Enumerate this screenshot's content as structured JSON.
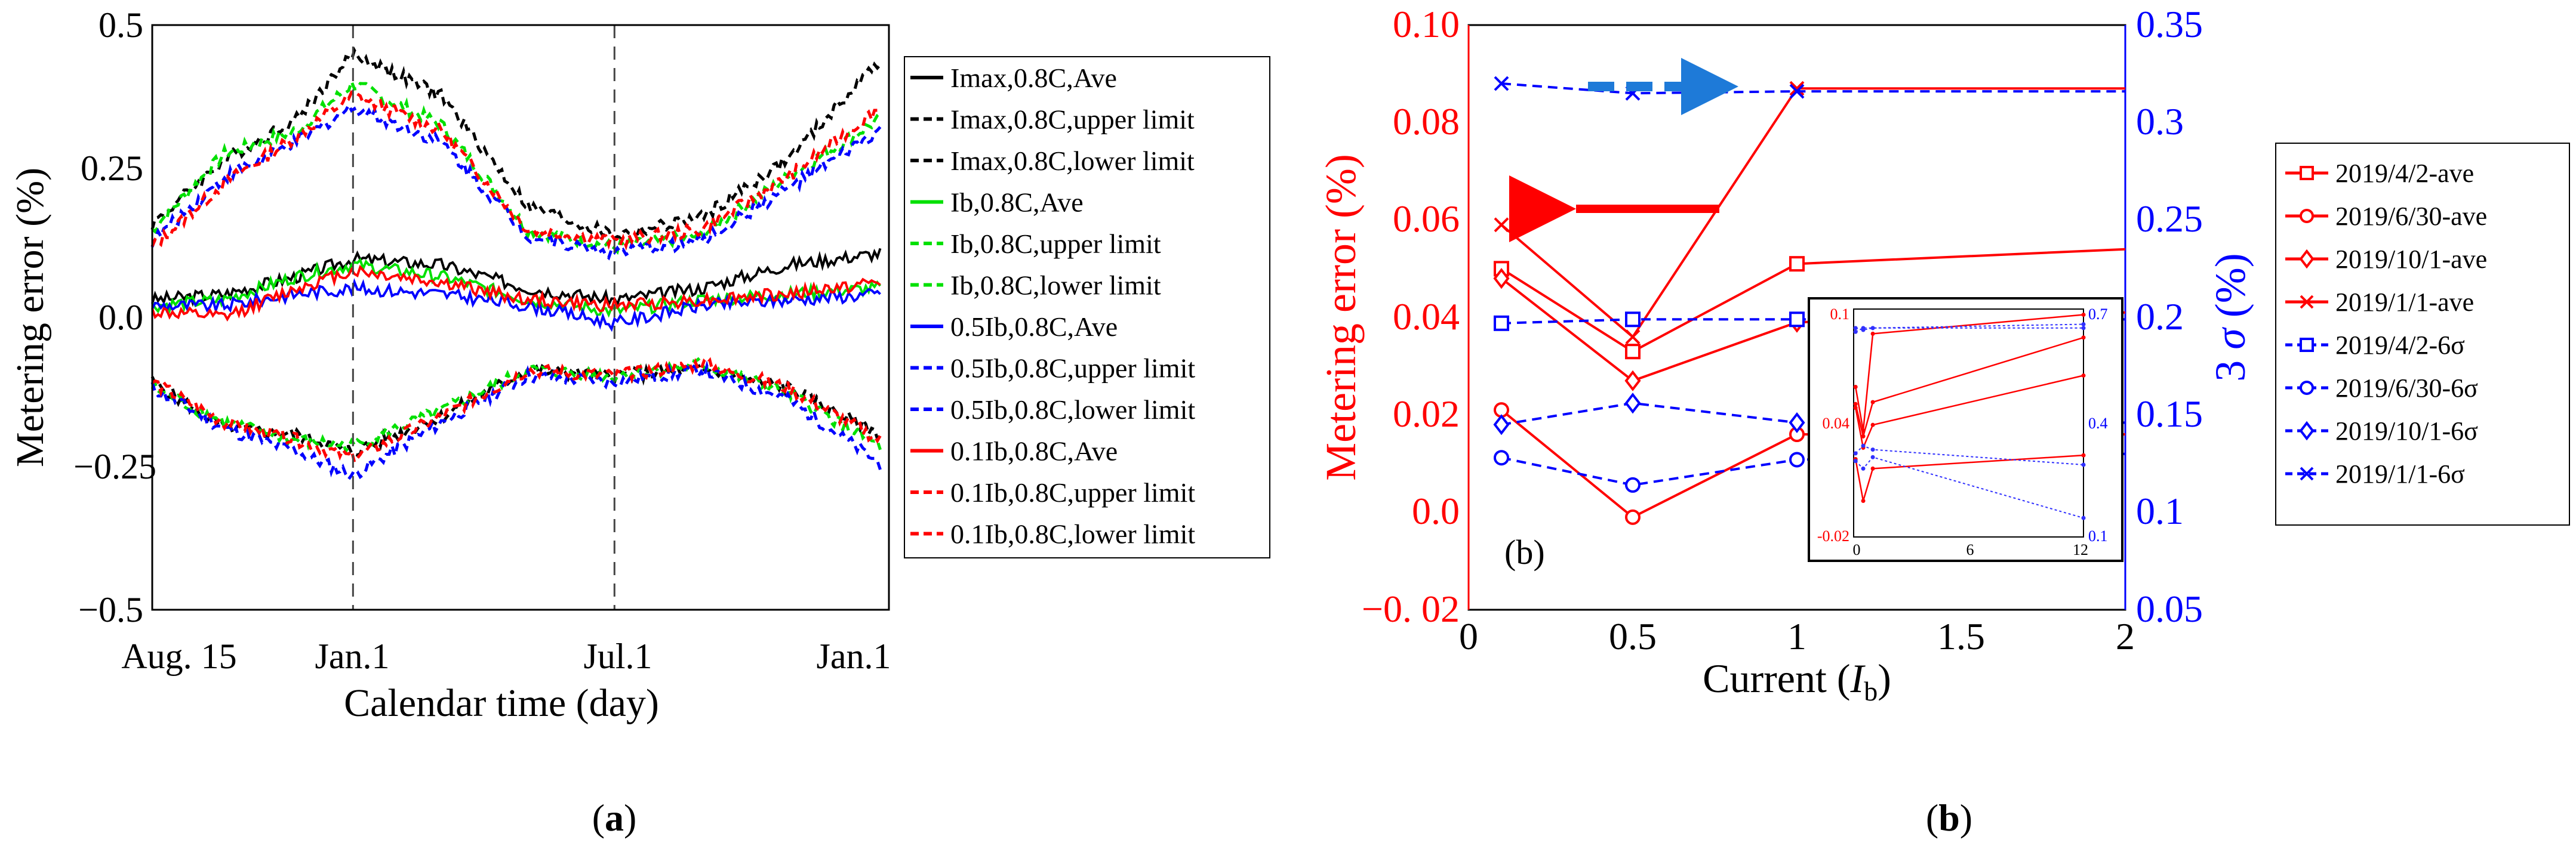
{
  "chart_data": [
    {
      "panel_label": "(a)",
      "panel_label_prefix": "(",
      "panel_label_letter": "a",
      "panel_label_suffix": ")",
      "type": "line",
      "xlabel": "Calendar time (day)",
      "ylabel": "Metering error (%)",
      "ylim": [
        -0.5,
        0.5
      ],
      "y_ticks": [
        "0.5",
        "0.25",
        "0.0",
        "−0.25",
        "−0.5"
      ],
      "y_tick_values": [
        0.5,
        0.25,
        0.0,
        -0.25,
        -0.5
      ],
      "x_ticks": [
        "Aug. 15",
        "Jan.1",
        "Jul.1",
        "Jan.1"
      ],
      "x_tick_values": [
        0,
        139,
        320,
        504
      ],
      "xlim": [
        0,
        510
      ],
      "vlines": [
        139,
        320
      ],
      "grid": false,
      "legend_position": "right, outside plot",
      "series": [
        {
          "name": "Imax,0.8C,Ave",
          "color": "#000000",
          "style": "solid",
          "x": [
            0,
            50,
            100,
            139,
            200,
            260,
            320,
            380,
            440,
            504
          ],
          "values": [
            0.03,
            0.04,
            0.07,
            0.1,
            0.09,
            0.05,
            0.03,
            0.05,
            0.09,
            0.11
          ]
        },
        {
          "name": "Imax,0.8C,upper limit",
          "color": "#000000",
          "style": "dashed",
          "x": [
            0,
            50,
            100,
            139,
            200,
            260,
            320,
            380,
            440,
            504
          ],
          "values": [
            0.16,
            0.27,
            0.34,
            0.45,
            0.38,
            0.19,
            0.14,
            0.17,
            0.27,
            0.44
          ]
        },
        {
          "name": "Imax,0.8C,lower limit",
          "color": "#000000",
          "style": "dashed",
          "x": [
            0,
            50,
            100,
            139,
            200,
            260,
            320,
            380,
            440,
            504
          ],
          "values": [
            -0.11,
            -0.19,
            -0.2,
            -0.23,
            -0.17,
            -0.09,
            -0.1,
            -0.09,
            -0.12,
            -0.2
          ]
        },
        {
          "name": "Ib,0.8C,Ave",
          "color": "#00e000",
          "style": "solid",
          "x": [
            0,
            50,
            100,
            139,
            200,
            260,
            320,
            380,
            440,
            504
          ],
          "values": [
            0.02,
            0.03,
            0.07,
            0.09,
            0.07,
            0.03,
            0.01,
            0.03,
            0.04,
            0.05
          ]
        },
        {
          "name": "Ib,0.8C,upper limit",
          "color": "#00e000",
          "style": "dashed",
          "x": [
            0,
            50,
            100,
            139,
            200,
            260,
            320,
            380,
            440,
            504
          ],
          "values": [
            0.15,
            0.28,
            0.32,
            0.4,
            0.33,
            0.15,
            0.12,
            0.14,
            0.24,
            0.34
          ]
        },
        {
          "name": "Ib,0.8C,lower limit",
          "color": "#00e000",
          "style": "dashed",
          "x": [
            0,
            50,
            100,
            139,
            200,
            260,
            320,
            380,
            440,
            504
          ],
          "values": [
            -0.12,
            -0.18,
            -0.21,
            -0.22,
            -0.16,
            -0.09,
            -0.1,
            -0.08,
            -0.13,
            -0.22
          ]
        },
        {
          "name": "0.5Ib,0.8C,Ave",
          "color": "#0000ff",
          "style": "solid",
          "x": [
            0,
            50,
            100,
            139,
            200,
            260,
            320,
            380,
            440,
            504
          ],
          "values": [
            0.02,
            0.02,
            0.04,
            0.05,
            0.04,
            0.02,
            -0.01,
            0.02,
            0.03,
            0.04
          ]
        },
        {
          "name": "0.5Ib,0.8C,upper limit",
          "color": "#0000ff",
          "style": "dashed",
          "x": [
            0,
            50,
            100,
            139,
            200,
            260,
            320,
            380,
            440,
            504
          ],
          "values": [
            0.13,
            0.24,
            0.3,
            0.36,
            0.3,
            0.14,
            0.11,
            0.13,
            0.22,
            0.32
          ]
        },
        {
          "name": "0.5Ib,0.8C,lower limit",
          "color": "#0000ff",
          "style": "dashed",
          "x": [
            0,
            50,
            100,
            139,
            200,
            260,
            320,
            380,
            440,
            504
          ],
          "values": [
            -0.12,
            -0.19,
            -0.23,
            -0.27,
            -0.18,
            -0.1,
            -0.11,
            -0.09,
            -0.14,
            -0.25
          ]
        },
        {
          "name": "0.1Ib,0.8C,Ave",
          "color": "#ff0000",
          "style": "solid",
          "x": [
            0,
            50,
            100,
            139,
            200,
            260,
            320,
            380,
            440,
            504
          ],
          "values": [
            0.01,
            0.0,
            0.05,
            0.08,
            0.06,
            0.03,
            0.02,
            0.03,
            0.04,
            0.06
          ]
        },
        {
          "name": "0.1Ib,0.8C,upper limit",
          "color": "#ff0000",
          "style": "dashed",
          "x": [
            0,
            50,
            100,
            139,
            200,
            260,
            320,
            380,
            440,
            504
          ],
          "values": [
            0.12,
            0.23,
            0.31,
            0.38,
            0.32,
            0.15,
            0.13,
            0.15,
            0.24,
            0.36
          ]
        },
        {
          "name": "0.1Ib,0.8C,lower limit",
          "color": "#ff0000",
          "style": "dashed",
          "x": [
            0,
            50,
            100,
            139,
            200,
            260,
            320,
            380,
            440,
            504
          ],
          "values": [
            -0.11,
            -0.18,
            -0.21,
            -0.24,
            -0.17,
            -0.09,
            -0.1,
            -0.08,
            -0.12,
            -0.21
          ]
        }
      ]
    },
    {
      "panel_label": "(b)",
      "panel_label_prefix": "(",
      "panel_label_letter": "b",
      "panel_label_suffix": ")",
      "inner_label": "(b)",
      "type": "line",
      "xlabel_prefix": "Current (",
      "xlabel_var": "I",
      "xlabel_sub": "b",
      "xlabel_suffix": ")",
      "ylabel": "Metering error (%)",
      "ylabel_right_prefix": "3 ",
      "ylabel_right_sigma": "σ",
      "ylabel_right_suffix": " (%)",
      "xlim": [
        0,
        2
      ],
      "x_ticks": [
        "0",
        "0.5",
        "1",
        "1.5",
        "2"
      ],
      "x_tick_values": [
        0,
        0.5,
        1,
        1.5,
        2
      ],
      "ylim": [
        -0.02,
        0.1
      ],
      "y_ticks": [
        "0.10",
        "0.08",
        "0.06",
        "0.04",
        "0.02",
        "0.0",
        "−0. 02"
      ],
      "y_tick_values": [
        0.1,
        0.08,
        0.06,
        0.04,
        0.02,
        0.0,
        -0.02
      ],
      "y2lim": [
        0.05,
        0.35
      ],
      "y2_ticks": [
        "0.35",
        "0.3",
        "0.25",
        "0.2",
        "0.15",
        "0.1",
        "0.05"
      ],
      "y2_tick_values": [
        0.35,
        0.3,
        0.25,
        0.2,
        0.15,
        0.1,
        0.05
      ],
      "grid": false,
      "legend_position": "right, outside plot",
      "colors": {
        "left_axis": "#ff0000",
        "right_axis": "#0000ff"
      },
      "series": [
        {
          "name": "2019/4/2-ave",
          "axis": "left",
          "marker": "square",
          "color": "#ff0000",
          "style": "solid",
          "x": [
            0.1,
            0.5,
            1.0,
            2.0
          ],
          "values": [
            0.05,
            0.033,
            0.051,
            0.054
          ]
        },
        {
          "name": "2019/6/30-ave",
          "axis": "left",
          "marker": "circle",
          "color": "#ff0000",
          "style": "solid",
          "x": [
            0.1,
            0.5,
            1.0,
            2.0
          ],
          "values": [
            0.021,
            -0.001,
            0.016,
            0.016
          ]
        },
        {
          "name": "2019/10/1-ave",
          "axis": "left",
          "marker": "diamond",
          "color": "#ff0000",
          "style": "solid",
          "x": [
            0.1,
            0.5,
            1.0,
            2.0
          ],
          "values": [
            0.048,
            0.027,
            0.039,
            0.041
          ]
        },
        {
          "name": "2019/1/1-ave",
          "axis": "left",
          "marker": "x",
          "color": "#ff0000",
          "style": "solid",
          "x": [
            0.1,
            0.5,
            1.0,
            2.0
          ],
          "values": [
            0.059,
            0.036,
            0.087,
            0.087
          ]
        },
        {
          "name": "2019/4/2-6σ",
          "axis": "right",
          "marker": "square",
          "color": "#0000ff",
          "style": "dashed",
          "x": [
            0.1,
            0.5,
            1.0,
            2.0
          ],
          "values": [
            0.197,
            0.199,
            0.199,
            0.199
          ]
        },
        {
          "name": "2019/6/30-6σ",
          "axis": "right",
          "marker": "circle",
          "color": "#0000ff",
          "style": "dashed",
          "x": [
            0.1,
            0.5,
            1.0,
            2.0
          ],
          "values": [
            0.128,
            0.114,
            0.127,
            0.13
          ]
        },
        {
          "name": "2019/10/1-6σ",
          "axis": "right",
          "marker": "diamond",
          "color": "#0000ff",
          "style": "dashed",
          "x": [
            0.1,
            0.5,
            1.0,
            2.0
          ],
          "values": [
            0.145,
            0.156,
            0.146,
            0.146
          ]
        },
        {
          "name": "2019/1/1-6σ",
          "axis": "right",
          "marker": "x",
          "color": "#0000ff",
          "style": "dashed",
          "x": [
            0.1,
            0.5,
            1.0,
            2.0
          ],
          "values": [
            0.32,
            0.315,
            0.316,
            0.316
          ]
        }
      ],
      "inset": {
        "xlim": [
          0,
          12
        ],
        "x_ticks": [
          "0",
          "6",
          "12"
        ],
        "x_tick_values": [
          0,
          6,
          12
        ],
        "ylim": [
          -0.02,
          0.1
        ],
        "y_ticks": [
          "0.1",
          "0.04",
          "-0.02"
        ],
        "y_tick_values": [
          0.1,
          0.04,
          -0.02
        ],
        "y2lim": [
          0.1,
          0.7
        ],
        "y2_ticks": [
          "0.7",
          "0.4",
          "0.1"
        ],
        "y2_tick_values": [
          0.7,
          0.4,
          0.1
        ],
        "series": [
          {
            "axis": "left",
            "color": "#ff0000",
            "x": [
              0.1,
              0.5,
              1,
              12
            ],
            "values": [
              0.05,
              0.033,
              0.051,
              0.085
            ]
          },
          {
            "axis": "left",
            "color": "#ff0000",
            "x": [
              0.1,
              0.5,
              1,
              12
            ],
            "values": [
              0.021,
              -0.001,
              0.016,
              0.023
            ]
          },
          {
            "axis": "left",
            "color": "#ff0000",
            "x": [
              0.1,
              0.5,
              1,
              12
            ],
            "values": [
              0.048,
              0.027,
              0.039,
              0.065
            ]
          },
          {
            "axis": "left",
            "color": "#ff0000",
            "x": [
              0.1,
              0.5,
              1,
              12
            ],
            "values": [
              0.059,
              0.036,
              0.087,
              0.097
            ]
          },
          {
            "axis": "right",
            "color": "#3030ff",
            "x": [
              0.1,
              0.5,
              1,
              12
            ],
            "values": [
              0.64,
              0.65,
              0.65,
              0.66
            ]
          },
          {
            "axis": "right",
            "color": "#3030ff",
            "x": [
              0.1,
              0.5,
              1,
              12
            ],
            "values": [
              0.3,
              0.28,
              0.31,
              0.15
            ]
          },
          {
            "axis": "right",
            "color": "#3030ff",
            "x": [
              0.1,
              0.5,
              1,
              12
            ],
            "values": [
              0.32,
              0.34,
              0.33,
              0.29
            ]
          },
          {
            "axis": "right",
            "color": "#3030ff",
            "x": [
              0.1,
              0.5,
              1,
              12
            ],
            "values": [
              0.65,
              0.645,
              0.65,
              0.65
            ]
          }
        ]
      }
    }
  ]
}
